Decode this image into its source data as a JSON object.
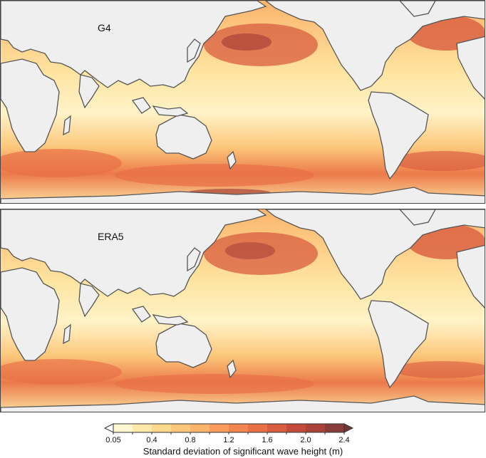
{
  "panels": [
    {
      "label": "G4"
    },
    {
      "label": "ERA5"
    }
  ],
  "colorbar": {
    "title": "Standard deviation of significant wave height (m)",
    "tick_labels": [
      "0.05",
      "0.4",
      "0.8",
      "1.2",
      "1.6",
      "2.0",
      "2.4"
    ],
    "bins": [
      0.05,
      0.2,
      0.4,
      0.6,
      0.8,
      1.0,
      1.2,
      1.4,
      1.6,
      1.8,
      2.0,
      2.2,
      2.4
    ],
    "colors": [
      "#fff7d1",
      "#fee9a8",
      "#fdd98c",
      "#fcc77a",
      "#fbb46b",
      "#f89d5d",
      "#f38650",
      "#e86f46",
      "#d85c3f",
      "#c44b3c",
      "#a84339",
      "#8a3c38"
    ],
    "extend": "both"
  },
  "map_colors": {
    "land": "#efefef",
    "coast": "#555555",
    "ocean_low": "#fff2c4",
    "ocean_mid": "#fcc77a",
    "ocean_high": "#e86f46",
    "ocean_peak": "#b54a3d"
  }
}
